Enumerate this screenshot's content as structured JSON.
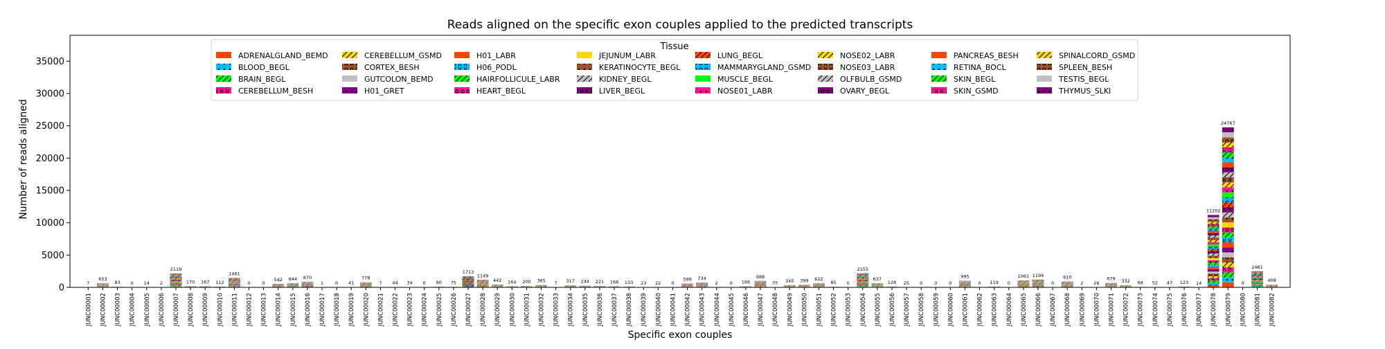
{
  "chart_data": {
    "type": "bar",
    "stacked": true,
    "title": "Reads aligned on the specific exon couples applied to the predicted transcripts",
    "xlabel": "Specific exon couples",
    "ylabel": "Number of reads aligned",
    "ylim": [
      0,
      39000
    ],
    "yticks": [
      0,
      5000,
      10000,
      15000,
      20000,
      25000,
      30000,
      35000
    ],
    "grid": false,
    "legend": {
      "title": "Tissue",
      "placement": "upper-center",
      "columns": 8
    },
    "categories": [
      "JUNC00001",
      "JUNC00002",
      "JUNC00003",
      "JUNC00004",
      "JUNC00005",
      "JUNC00006",
      "JUNC00007",
      "JUNC00008",
      "JUNC00009",
      "JUNC00010",
      "JUNC00011",
      "JUNC00012",
      "JUNC00013",
      "JUNC00014",
      "JUNC00015",
      "JUNC00016",
      "JUNC00017",
      "JUNC00018",
      "JUNC00019",
      "JUNC00020",
      "JUNC00021",
      "JUNC00022",
      "JUNC00023",
      "JUNC00024",
      "JUNC00025",
      "JUNC00026",
      "JUNC00027",
      "JUNC00028",
      "JUNC00029",
      "JUNC00030",
      "JUNC00031",
      "JUNC00032",
      "JUNC00033",
      "JUNC00034",
      "JUNC00035",
      "JUNC00036",
      "JUNC00037",
      "JUNC00038",
      "JUNC00039",
      "JUNC00040",
      "JUNC00041",
      "JUNC00042",
      "JUNC00043",
      "JUNC00044",
      "JUNC00045",
      "JUNC00046",
      "JUNC00047",
      "JUNC00048",
      "JUNC00049",
      "JUNC00050",
      "JUNC00051",
      "JUNC00052",
      "JUNC00053",
      "JUNC00054",
      "JUNC00055",
      "JUNC00056",
      "JUNC00057",
      "JUNC00058",
      "JUNC00059",
      "JUNC00060",
      "JUNC00061",
      "JUNC00062",
      "JUNC00063",
      "JUNC00064",
      "JUNC00065",
      "JUNC00066",
      "JUNC00067",
      "JUNC00068",
      "JUNC00069",
      "JUNC00070",
      "JUNC00071",
      "JUNC00072",
      "JUNC00073",
      "JUNC00074",
      "JUNC00075",
      "JUNC00076",
      "JUNC00077",
      "JUNC00078",
      "JUNC00079",
      "JUNC00080",
      "JUNC00081",
      "JUNC00082"
    ],
    "totals": [
      7,
      653,
      83,
      0,
      14,
      2,
      2119,
      170,
      167,
      112,
      1461,
      0,
      0,
      542,
      644,
      870,
      1,
      0,
      41,
      778,
      7,
      44,
      34,
      0,
      90,
      75,
      1713,
      1149,
      442,
      164,
      200,
      365,
      7,
      317,
      244,
      221,
      168,
      133,
      23,
      22,
      0,
      599,
      734,
      2,
      0,
      166,
      988,
      35,
      345,
      399,
      622,
      85,
      0,
      2155,
      637,
      128,
      25,
      0,
      0,
      0,
      995,
      0,
      119,
      0,
      1061,
      1194,
      0,
      910,
      2,
      26,
      679,
      332,
      68,
      52,
      47,
      123,
      14,
      11202,
      24767,
      0,
      2481,
      408
    ],
    "series": [
      {
        "name": "ADRENALGLAND_BEMD",
        "color": "#ff4500",
        "hatch": "none"
      },
      {
        "name": "BLOOD_BEGL",
        "color": "#00bfff",
        "hatch": "dot"
      },
      {
        "name": "BRAIN_BEGL",
        "color": "#00ff00",
        "hatch": "slash"
      },
      {
        "name": "CEREBELLUM_BESH",
        "color": "#ff1493",
        "hatch": "bracket"
      },
      {
        "name": "CEREBELLUM_GSMD",
        "color": "#ffd700",
        "hatch": "slash"
      },
      {
        "name": "CORTEX_BESH",
        "color": "#a0522d",
        "hatch": "ring"
      },
      {
        "name": "GUTCOLON_BEMD",
        "color": "#c0c0c0",
        "hatch": "none"
      },
      {
        "name": "H01_GRET",
        "color": "#800080",
        "hatch": "dot"
      },
      {
        "name": "H01_LABR",
        "color": "#ff4500",
        "hatch": "none"
      },
      {
        "name": "H06_PODL",
        "color": "#00bfff",
        "hatch": "bracket"
      },
      {
        "name": "HAIRFOLLICULE_LABR",
        "color": "#00ff00",
        "hatch": "slash"
      },
      {
        "name": "HEART_BEGL",
        "color": "#ff1493",
        "hatch": "ring"
      },
      {
        "name": "JEJUNUM_LABR",
        "color": "#ffd700",
        "hatch": "none"
      },
      {
        "name": "KERATINOCYTE_BEGL",
        "color": "#a0522d",
        "hatch": "dot"
      },
      {
        "name": "KIDNEY_BEGL",
        "color": "#c0c0c0",
        "hatch": "slash"
      },
      {
        "name": "LIVER_BEGL",
        "color": "#800080",
        "hatch": "bracket"
      },
      {
        "name": "LUNG_BEGL",
        "color": "#ff4500",
        "hatch": "slash"
      },
      {
        "name": "MAMMARYGLAND_GSMD",
        "color": "#00bfff",
        "hatch": "ring"
      },
      {
        "name": "MUSCLE_BEGL",
        "color": "#00ff00",
        "hatch": "none"
      },
      {
        "name": "NOSE01_LABR",
        "color": "#ff1493",
        "hatch": "dot"
      },
      {
        "name": "NOSE02_LABR",
        "color": "#ffd700",
        "hatch": "slash"
      },
      {
        "name": "NOSE03_LABR",
        "color": "#a0522d",
        "hatch": "bracket"
      },
      {
        "name": "OLFBULB_GSMD",
        "color": "#c0c0c0",
        "hatch": "slash"
      },
      {
        "name": "OVARY_BEGL",
        "color": "#800080",
        "hatch": "ring"
      },
      {
        "name": "PANCREAS_BESH",
        "color": "#ff4500",
        "hatch": "none"
      },
      {
        "name": "RETINA_BOCL",
        "color": "#00bfff",
        "hatch": "dot"
      },
      {
        "name": "SKIN_BEGL",
        "color": "#00ff00",
        "hatch": "slash"
      },
      {
        "name": "SKIN_GSMD",
        "color": "#ff1493",
        "hatch": "bracket"
      },
      {
        "name": "SPINALCORD_GSMD",
        "color": "#ffd700",
        "hatch": "slash"
      },
      {
        "name": "SPLEEN_BESH",
        "color": "#a0522d",
        "hatch": "ring"
      },
      {
        "name": "TESTIS_BEGL",
        "color": "#c0c0c0",
        "hatch": "none"
      },
      {
        "name": "THYMUS_SLKI",
        "color": "#800080",
        "hatch": "dot"
      }
    ]
  }
}
